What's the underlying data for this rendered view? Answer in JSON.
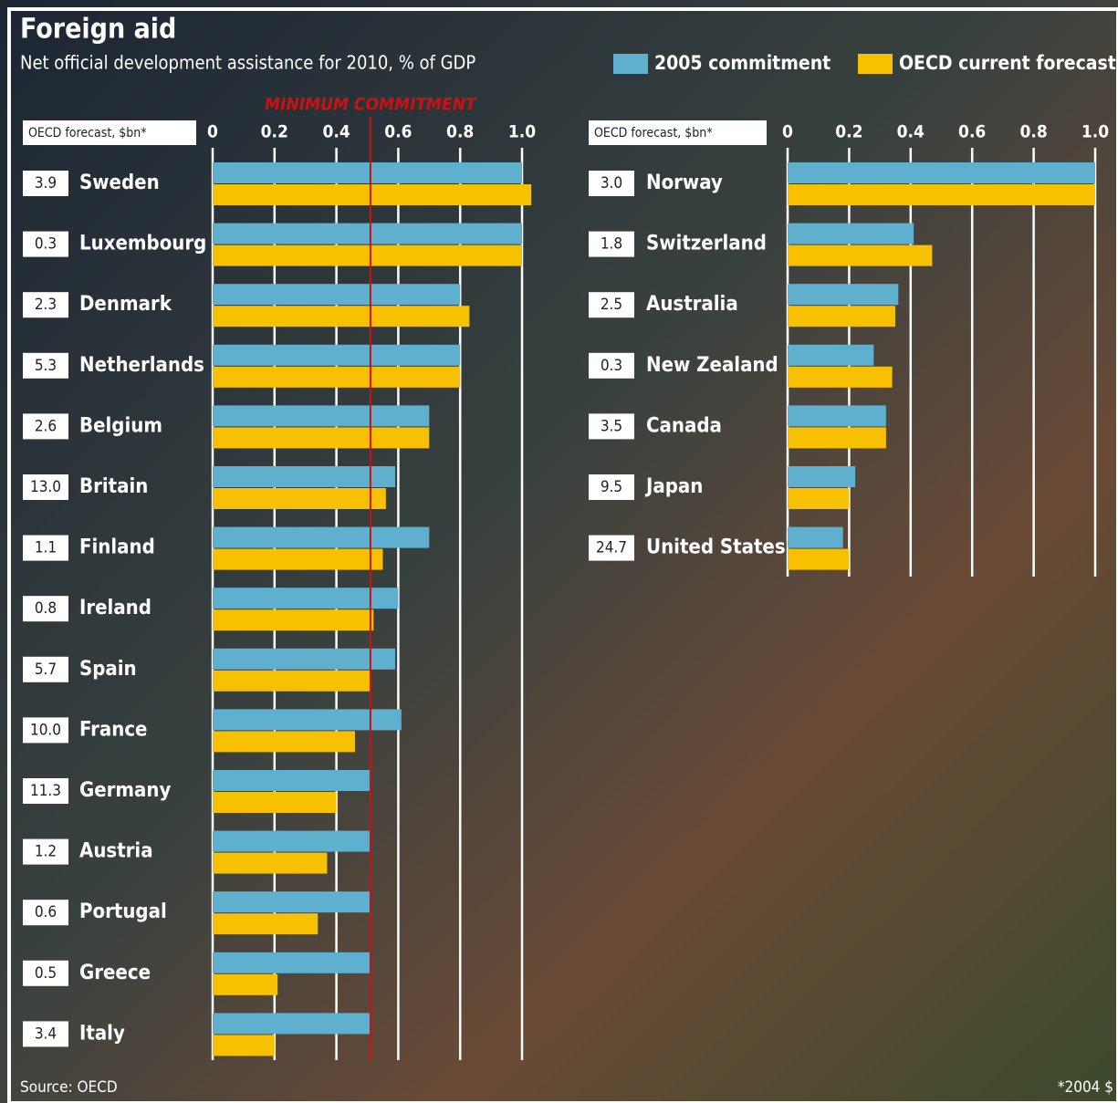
{
  "chart_data": [
    {
      "type": "bar",
      "orientation": "horizontal",
      "title": "Foreign aid",
      "subtitle": "Net official development assistance for 2010, % of GDP",
      "source": "Source: OECD",
      "forecast_label": "OECD forecast, $bn*",
      "categories": [
        "Sweden",
        "Luxembourg",
        "Denmark",
        "Netherlands",
        "Belgium",
        "Britain",
        "Finland",
        "Ireland",
        "Spain",
        "France",
        "Germany",
        "Austria",
        "Portugal",
        "Greece",
        "Italy"
      ],
      "forecast_bn": [
        "3.9",
        "0.3",
        "2.3",
        "5.3",
        "2.6",
        "13.0",
        "1.1",
        "0.8",
        "5.7",
        "10.0",
        "11.3",
        "1.2",
        "0.6",
        "0.5",
        "3.4"
      ],
      "series": [
        {
          "color": "#5fb0cf",
          "values": [
            1.0,
            1.0,
            0.8,
            0.8,
            0.7,
            0.59,
            0.7,
            0.6,
            0.59,
            0.61,
            0.51,
            0.51,
            0.51,
            0.51,
            0.51
          ]
        },
        {
          "color": "#f7c000",
          "values": [
            1.03,
            1.0,
            0.83,
            0.8,
            0.7,
            0.56,
            0.55,
            0.52,
            0.51,
            0.46,
            0.4,
            0.37,
            0.34,
            0.21,
            0.2
          ]
        }
      ],
      "reference_line": {
        "value": 0.51,
        "label": "MINIMUM COMMITMENT",
        "color": "#d01010"
      },
      "xlim": [
        0,
        1
      ],
      "xticks": [
        0,
        0.2,
        0.4,
        0.6,
        0.8,
        {
          "value": 1,
          "label": "1.0"
        }
      ],
      "grid": true
    },
    {
      "type": "bar",
      "orientation": "horizontal",
      "footnote": "*2004 $",
      "forecast_label": "OECD forecast, $bn*",
      "categories": [
        "Norway",
        "Switzerland",
        "Australia",
        "New Zealand",
        "Canada",
        "Japan",
        "United States"
      ],
      "forecast_bn": [
        "3.0",
        "1.8",
        "2.5",
        "0.3",
        "3.5",
        "9.5",
        "24.7"
      ],
      "series": [
        {
          "name": "2005 commitment",
          "color": "#5fb0cf",
          "values": [
            1.0,
            0.41,
            0.36,
            0.28,
            0.32,
            0.22,
            0.18
          ]
        },
        {
          "name": "OECD current forecast",
          "color": "#f7c000",
          "values": [
            1.0,
            0.47,
            0.35,
            0.34,
            0.32,
            0.2,
            0.2
          ]
        }
      ],
      "xlim": [
        0,
        1
      ],
      "xticks": [
        0,
        0.2,
        0.4,
        0.6,
        0.8,
        {
          "value": 1,
          "label": "1.0"
        }
      ],
      "grid": true
    }
  ]
}
